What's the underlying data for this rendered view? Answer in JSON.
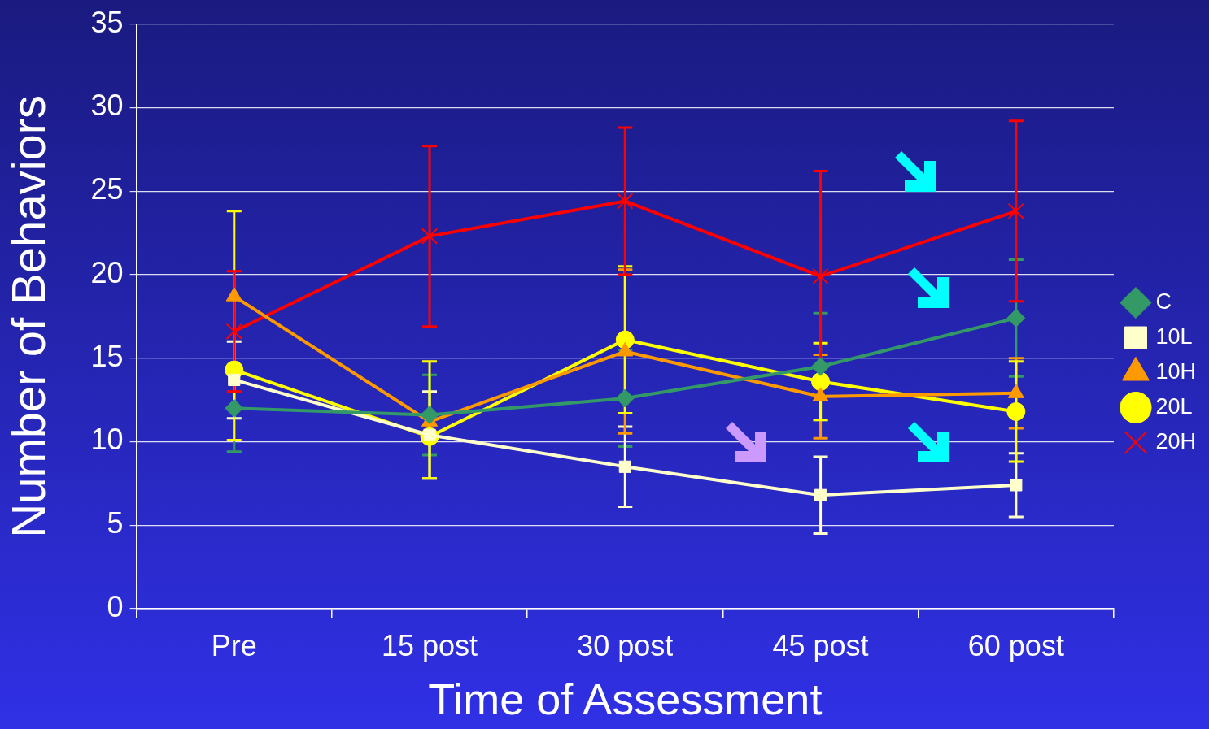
{
  "chart_data": {
    "type": "line",
    "xlabel": "Time of Assessment",
    "ylabel": "Number of Behaviors",
    "categories": [
      "Pre",
      "15 post",
      "30 post",
      "45 post",
      "60 post"
    ],
    "ylim": [
      0,
      35
    ],
    "yticks": [
      0,
      5,
      10,
      15,
      20,
      25,
      30,
      35
    ],
    "grid": "y",
    "legend": "right",
    "line_style": "solid",
    "series": [
      {
        "name": "C",
        "color": "#339966",
        "marker": "diamond",
        "values": [
          12.0,
          11.6,
          12.6,
          14.5,
          17.4
        ],
        "errors": [
          2.6,
          2.4,
          2.9,
          3.2,
          3.5
        ]
      },
      {
        "name": "10L",
        "color": "#ffffcc",
        "marker": "square",
        "values": [
          13.7,
          10.4,
          8.5,
          6.8,
          7.4
        ],
        "errors": [
          2.3,
          2.6,
          2.4,
          2.3,
          1.9
        ]
      },
      {
        "name": "10H",
        "color": "#ff9900",
        "marker": "triangle",
        "values": [
          18.7,
          11.2,
          15.4,
          12.7,
          12.9
        ],
        "errors": [
          null,
          null,
          4.9,
          2.5,
          2.1
        ]
      },
      {
        "name": "20L",
        "color": "#ffff00",
        "marker": "circle",
        "values": [
          14.3,
          10.3,
          16.1,
          13.6,
          11.8
        ],
        "errors": [
          [
            10.1,
            23.8
          ],
          [
            7.8,
            14.8
          ],
          4.4,
          2.3,
          3.0
        ]
      },
      {
        "name": "20H",
        "color": "#ff0000",
        "marker": "cross",
        "values": [
          16.6,
          22.3,
          24.4,
          19.9,
          23.8
        ],
        "errors": [
          3.6,
          5.4,
          4.4,
          6.3,
          5.4
        ]
      }
    ]
  }
}
